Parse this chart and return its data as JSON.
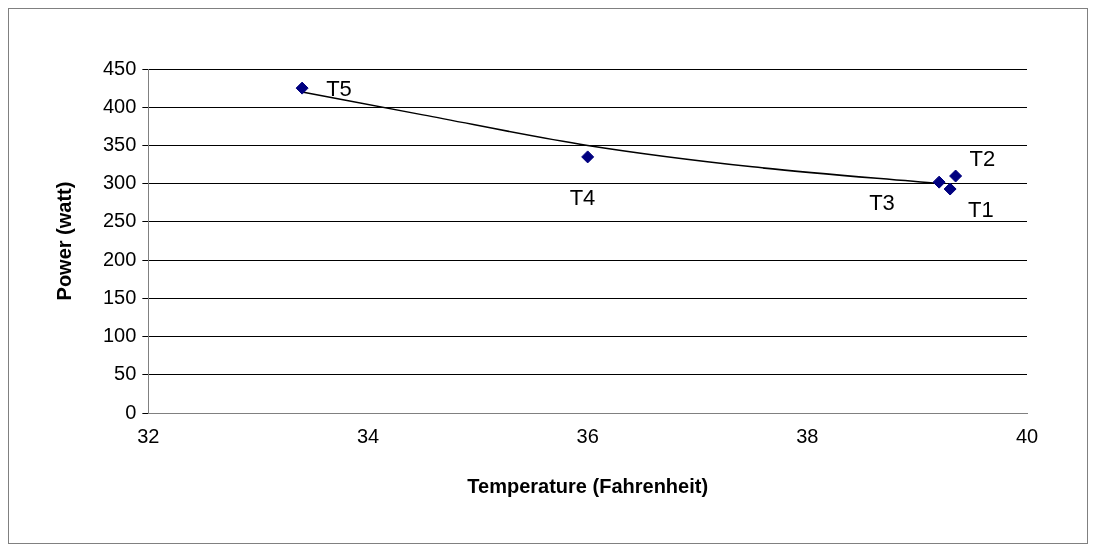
{
  "chart_data": {
    "type": "scatter",
    "xlabel": "Temperature (Fahrenheit)",
    "ylabel": "Power (watt)",
    "xlim": [
      32,
      40
    ],
    "xticks": [
      32,
      34,
      36,
      38,
      40
    ],
    "ylim": [
      0,
      450
    ],
    "yticks": [
      0,
      50,
      100,
      150,
      200,
      250,
      300,
      350,
      400,
      450
    ],
    "grid": "y",
    "marker": "diamond",
    "series": [
      {
        "type": "scatter",
        "color": "#000080",
        "x": [
          39.3,
          39.35,
          39.2,
          36.0,
          33.4
        ],
        "values": [
          293,
          310,
          302,
          335,
          425
        ]
      },
      {
        "type": "line",
        "color": "#000000",
        "marker": "none",
        "line_style": "solid",
        "x": [
          33.4,
          34.5,
          36.0,
          37.5,
          39.2
        ],
        "values": [
          420,
          390,
          350,
          322,
          300
        ]
      }
    ],
    "annotations": [
      {
        "text": "T1",
        "x": 39.3,
        "y": 293
      },
      {
        "text": "T2",
        "x": 39.35,
        "y": 310
      },
      {
        "text": "T3",
        "x": 39.2,
        "y": 302
      },
      {
        "text": "T4",
        "x": 36.0,
        "y": 335
      },
      {
        "text": "T5",
        "x": 33.4,
        "y": 425
      }
    ]
  }
}
